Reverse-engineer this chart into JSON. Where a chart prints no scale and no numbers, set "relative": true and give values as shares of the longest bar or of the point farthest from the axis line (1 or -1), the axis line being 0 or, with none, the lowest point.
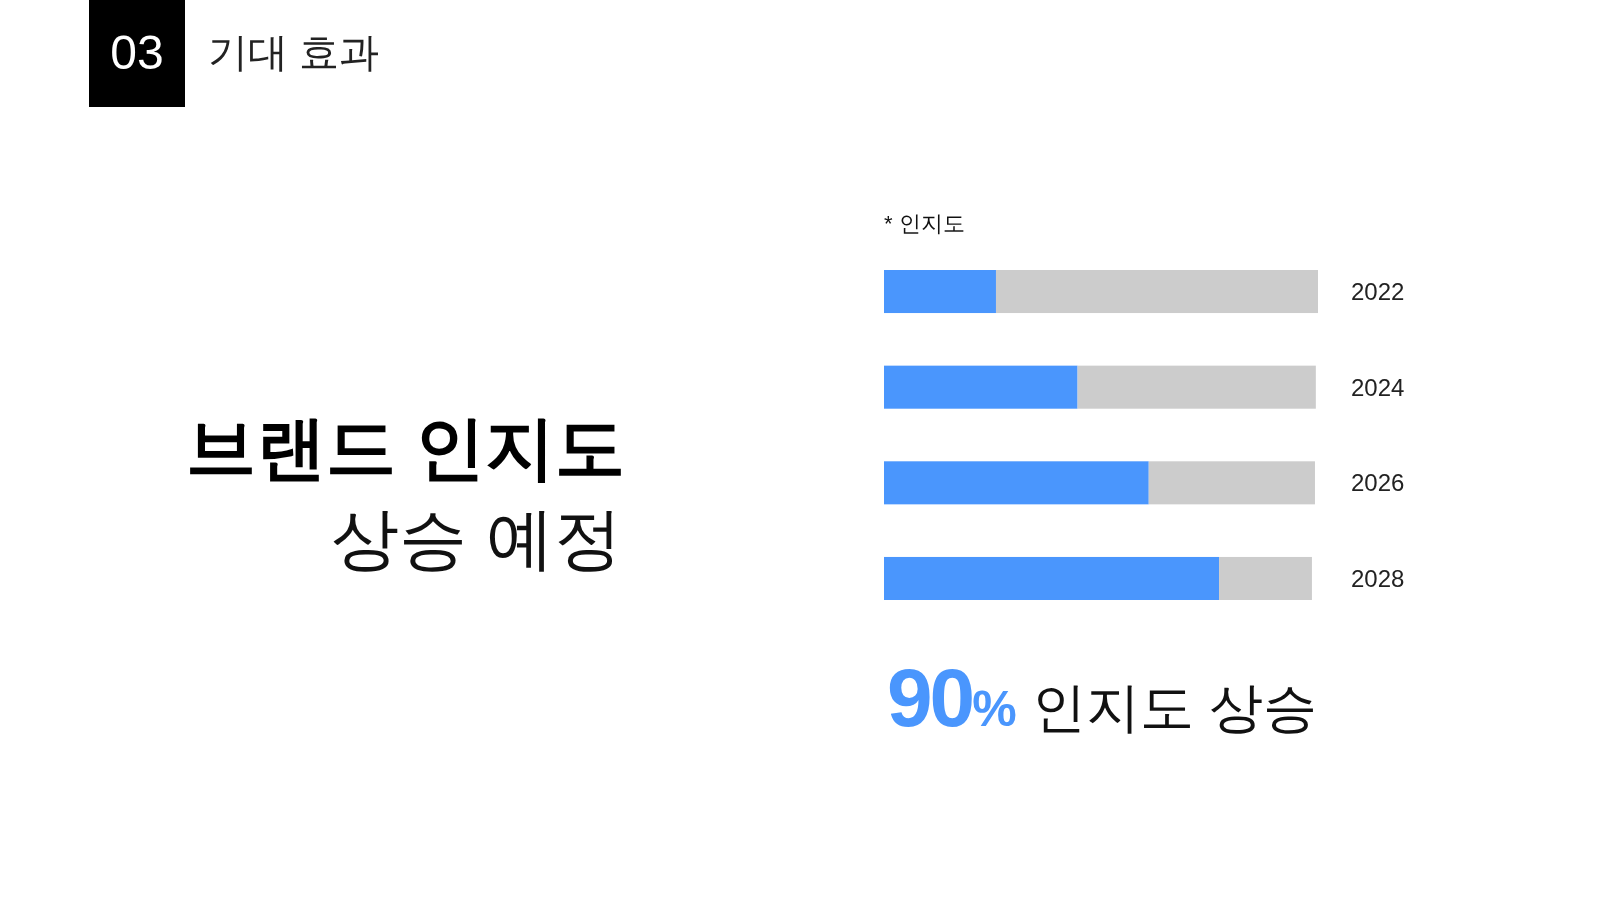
{
  "chart_data": {
    "type": "bar",
    "orientation": "horizontal",
    "stacked": true,
    "relative": true,
    "title": "브랜드 인지도",
    "subtitle": "상승 예정",
    "categories": [
      "2022",
      "2024",
      "2026",
      "2028"
    ],
    "series": [
      {
        "color": "#4a96fd",
        "values": [
          0.258,
          0.446,
          0.61,
          0.772
        ]
      },
      {
        "color": "#cccccc",
        "values": [
          0.742,
          0.549,
          0.383,
          0.214
        ]
      }
    ],
    "annotations": [
      "03",
      "기대 효과",
      "* 인지도",
      "90% 인지도 상승"
    ]
  }
}
